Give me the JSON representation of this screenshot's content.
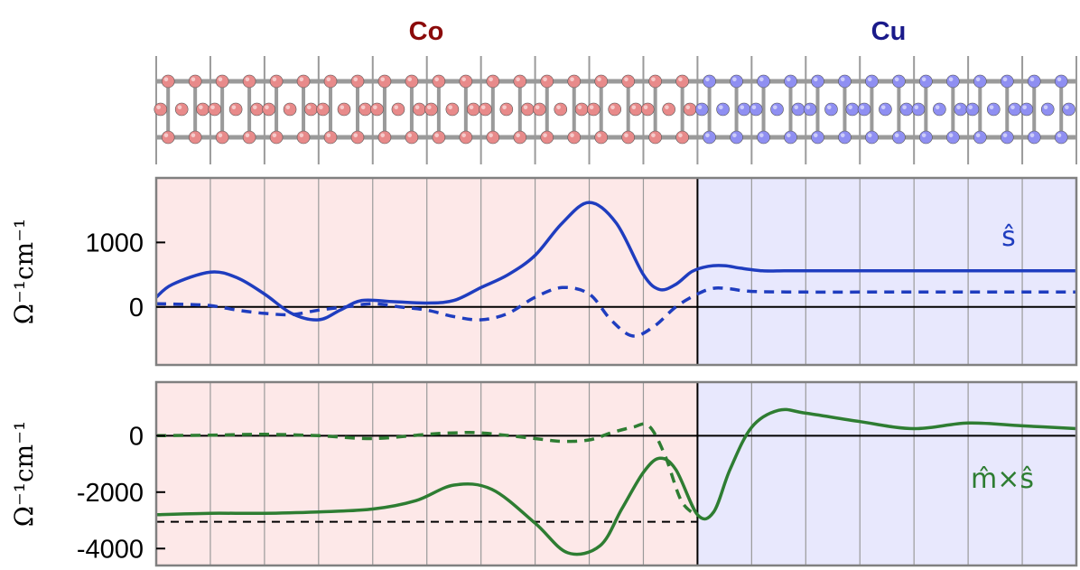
{
  "header": {
    "left_label": "Co",
    "right_label": "Cu",
    "left_color": "#8b0a0a",
    "right_color": "#1a1a8a"
  },
  "colors": {
    "co_atom": "#e88a8a",
    "cu_atom": "#8f8ff2",
    "co_region": "#fde8e8",
    "cu_region": "#e8e8fd",
    "top_series": "#1f3dbf",
    "bottom_series": "#2e7d32",
    "zero_line": "#000000",
    "ref_line": "#000000",
    "frame": "#808080"
  },
  "structure": {
    "co_cells": 10,
    "cu_cells": 7
  },
  "chart_data": [
    {
      "type": "line",
      "ylabel": "Ω⁻¹cm⁻¹",
      "yticks": [
        0,
        1000
      ],
      "ylim": [
        -900,
        2000
      ],
      "xlim": [
        0,
        17
      ],
      "regions": [
        {
          "name": "Co",
          "x": [
            0,
            10
          ]
        },
        {
          "name": "Cu",
          "x": [
            10,
            17
          ]
        }
      ],
      "annotation": "ŝ",
      "series": [
        {
          "style": "solid",
          "x": [
            0,
            0.3,
            1.0,
            1.5,
            2.0,
            2.5,
            3.0,
            3.4,
            3.8,
            4.4,
            5.0,
            5.5,
            6.0,
            6.5,
            7.0,
            7.5,
            8.0,
            8.5,
            9.0,
            9.3,
            9.6,
            9.9,
            10.2,
            10.5,
            10.8,
            11.2,
            11.6,
            12,
            13,
            14,
            15,
            16,
            17
          ],
          "y": [
            150,
            350,
            540,
            450,
            200,
            -100,
            -200,
            -50,
            100,
            80,
            60,
            100,
            300,
            500,
            800,
            1300,
            1620,
            1300,
            500,
            270,
            350,
            550,
            630,
            640,
            600,
            560,
            560,
            560,
            560,
            560,
            560,
            560,
            560
          ]
        },
        {
          "style": "dashed",
          "x": [
            0,
            0.5,
            1.0,
            1.5,
            2.0,
            2.5,
            3.0,
            3.5,
            4.0,
            4.5,
            5.0,
            5.5,
            6.0,
            6.5,
            7.0,
            7.5,
            8.0,
            8.4,
            8.8,
            9.2,
            9.6,
            10.0,
            10.3,
            10.6,
            11.0,
            12,
            13,
            14,
            15,
            16,
            17
          ],
          "y": [
            50,
            40,
            20,
            -50,
            -100,
            -120,
            -50,
            0,
            50,
            0,
            -50,
            -150,
            -200,
            -100,
            150,
            300,
            200,
            -200,
            -450,
            -300,
            0,
            200,
            290,
            280,
            240,
            230,
            230,
            230,
            230,
            230,
            230
          ]
        }
      ]
    },
    {
      "type": "line",
      "ylabel": "Ω⁻¹cm⁻¹",
      "yticks": [
        -4000,
        -2000,
        0
      ],
      "ylim": [
        -4600,
        1900
      ],
      "xlim": [
        0,
        17
      ],
      "regions": [
        {
          "name": "Co",
          "x": [
            0,
            10
          ]
        },
        {
          "name": "Cu",
          "x": [
            10,
            17
          ]
        }
      ],
      "annotation": "m̂×ŝ",
      "reference_line": {
        "y": -3050,
        "x": [
          0,
          10
        ]
      },
      "series": [
        {
          "style": "solid",
          "x": [
            0,
            1,
            2,
            3,
            4,
            4.8,
            5.5,
            6.2,
            7.0,
            7.6,
            8.2,
            8.6,
            9.0,
            9.3,
            9.6,
            10.0,
            10.3,
            10.6,
            11.0,
            11.5,
            12,
            13,
            14,
            15,
            16,
            17
          ],
          "y": [
            -2800,
            -2750,
            -2750,
            -2700,
            -2600,
            -2300,
            -1750,
            -1900,
            -3100,
            -4150,
            -3900,
            -2600,
            -1300,
            -800,
            -1200,
            -2800,
            -2700,
            -1200,
            300,
            900,
            800,
            500,
            250,
            450,
            350,
            250
          ]
        },
        {
          "style": "dashed",
          "x": [
            0,
            1,
            2,
            3,
            4,
            5,
            5.5,
            6,
            7,
            7.5,
            8,
            8.4,
            8.8,
            9.1,
            9.4,
            9.7,
            10.0
          ],
          "y": [
            0,
            20,
            50,
            0,
            -100,
            50,
            100,
            100,
            -100,
            -200,
            -150,
            100,
            300,
            350,
            -700,
            -2300,
            -2850
          ]
        }
      ]
    }
  ]
}
